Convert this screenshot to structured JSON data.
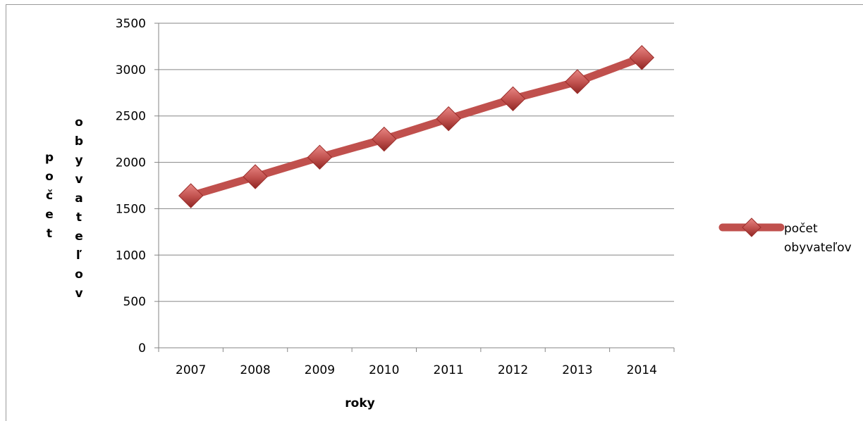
{
  "chart_data": {
    "type": "line",
    "categories": [
      "2007",
      "2008",
      "2009",
      "2010",
      "2011",
      "2012",
      "2013",
      "2014"
    ],
    "series": [
      {
        "name": "počet obyvateľov",
        "values": [
          1640,
          1845,
          2055,
          2250,
          2470,
          2685,
          2870,
          3130
        ]
      }
    ],
    "xlabel": "roky",
    "ylabel": "počet obyvateľov",
    "ylabel_columns": [
      "počet",
      "obyvateľov"
    ],
    "ylim": [
      0,
      3500
    ],
    "yticks": [
      0,
      500,
      1000,
      1500,
      2000,
      2500,
      3000,
      3500
    ],
    "grid": true,
    "legend_position": "right",
    "legend_lines": [
      "počet",
      "obyvateľov"
    ],
    "colors": {
      "line": "#c0504d",
      "marker": "#c0504d",
      "marker_dark": "#9b2d2a",
      "grid": "#868686"
    }
  }
}
